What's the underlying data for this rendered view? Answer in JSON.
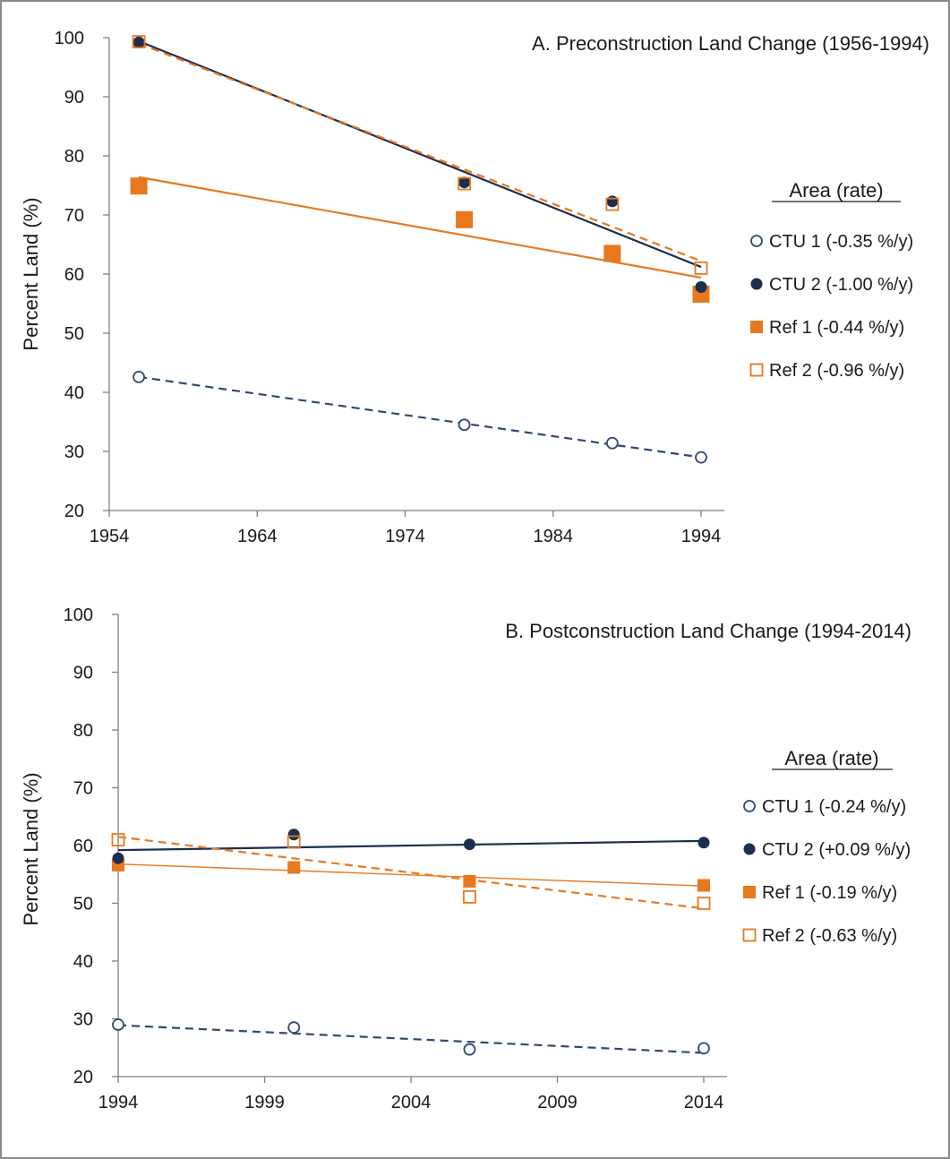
{
  "chart_data": [
    {
      "type": "scatter",
      "title": "A.  Preconstruction Land Change (1956-1994)",
      "ylabel": "Percent Land (%)",
      "xlim": [
        1954,
        1994
      ],
      "ylim": [
        20,
        100
      ],
      "xticks": [
        1954,
        1964,
        1974,
        1984,
        1994
      ],
      "yticks": [
        20,
        30,
        40,
        50,
        60,
        70,
        80,
        90,
        100
      ],
      "legend_title": "Area  (rate)",
      "legend_position": "right",
      "series": [
        {
          "name": "CTU 1 (-0.35 %/y)",
          "marker": "open-circle",
          "color": "#2e4a72",
          "x": [
            1956,
            1978,
            1988,
            1994
          ],
          "y": [
            42.6,
            34.5,
            31.4,
            29.0
          ],
          "trend": {
            "style": "dashed",
            "from": [
              1956,
              42.6
            ],
            "to": [
              1994,
              29.0
            ]
          }
        },
        {
          "name": "CTU 2 (-1.00 %/y)",
          "marker": "filled-circle",
          "color": "#1c2f4f",
          "x": [
            1956,
            1978,
            1988,
            1994
          ],
          "y": [
            99.2,
            75.5,
            72.3,
            57.8
          ],
          "trend": {
            "style": "solid",
            "from": [
              1956,
              99.4
            ],
            "to": [
              1994,
              61.2
            ]
          }
        },
        {
          "name": "Ref 1 (-0.44 %/y)",
          "marker": "filled-square",
          "color": "#e8781e",
          "x": [
            1956,
            1978,
            1988,
            1994
          ],
          "y": [
            74.9,
            69.2,
            63.5,
            56.6
          ],
          "trend": {
            "style": "solid",
            "from": [
              1956,
              76.4
            ],
            "to": [
              1994,
              59.4
            ]
          }
        },
        {
          "name": "Ref 2 (-0.96 %/y)",
          "marker": "open-square",
          "color": "#e8781e",
          "x": [
            1956,
            1978,
            1988,
            1994
          ],
          "y": [
            99.3,
            75.3,
            71.8,
            61.0
          ],
          "trend": {
            "style": "dashed",
            "from": [
              1956,
              99.0
            ],
            "to": [
              1994,
              62.2
            ]
          }
        }
      ]
    },
    {
      "type": "scatter",
      "title": "B.  Postconstruction Land Change (1994-2014)",
      "ylabel": "Percent Land (%)",
      "xlim": [
        1994,
        2014
      ],
      "ylim": [
        20,
        100
      ],
      "xticks": [
        1994,
        1999,
        2004,
        2009,
        2014
      ],
      "yticks": [
        20,
        30,
        40,
        50,
        60,
        70,
        80,
        90,
        100
      ],
      "legend_title": "Area  (rate)",
      "legend_position": "right",
      "series": [
        {
          "name": "CTU 1 (-0.24 %/y)",
          "marker": "open-circle",
          "color": "#2e4a72",
          "x": [
            1994,
            2000,
            2006,
            2014
          ],
          "y": [
            29.0,
            28.5,
            24.7,
            24.9
          ],
          "trend": {
            "style": "dashed",
            "from": [
              1994,
              28.9
            ],
            "to": [
              2014,
              24.1
            ]
          }
        },
        {
          "name": "CTU 2 (+0.09 %/y)",
          "marker": "filled-circle",
          "color": "#1c2f4f",
          "x": [
            1994,
            2000,
            2006,
            2014
          ],
          "y": [
            57.8,
            61.9,
            60.2,
            60.5
          ],
          "trend": {
            "style": "solid",
            "from": [
              1994,
              59.2
            ],
            "to": [
              2014,
              60.8
            ]
          }
        },
        {
          "name": "Ref 1 (-0.19 %/y)",
          "marker": "filled-square",
          "color": "#e8781e",
          "x": [
            1994,
            2000,
            2006,
            2014
          ],
          "y": [
            56.6,
            56.2,
            53.8,
            53.1
          ],
          "trend": {
            "style": "solid",
            "from": [
              1994,
              56.8
            ],
            "to": [
              2014,
              53.0
            ]
          }
        },
        {
          "name": "Ref 2 (-0.63 %/y)",
          "marker": "open-square",
          "color": "#e8781e",
          "x": [
            1994,
            2000,
            2006,
            2014
          ],
          "y": [
            61.0,
            60.6,
            51.1,
            50.0
          ],
          "trend": {
            "style": "dashed",
            "from": [
              1994,
              61.5
            ],
            "to": [
              2014,
              49.1
            ]
          }
        }
      ]
    }
  ]
}
